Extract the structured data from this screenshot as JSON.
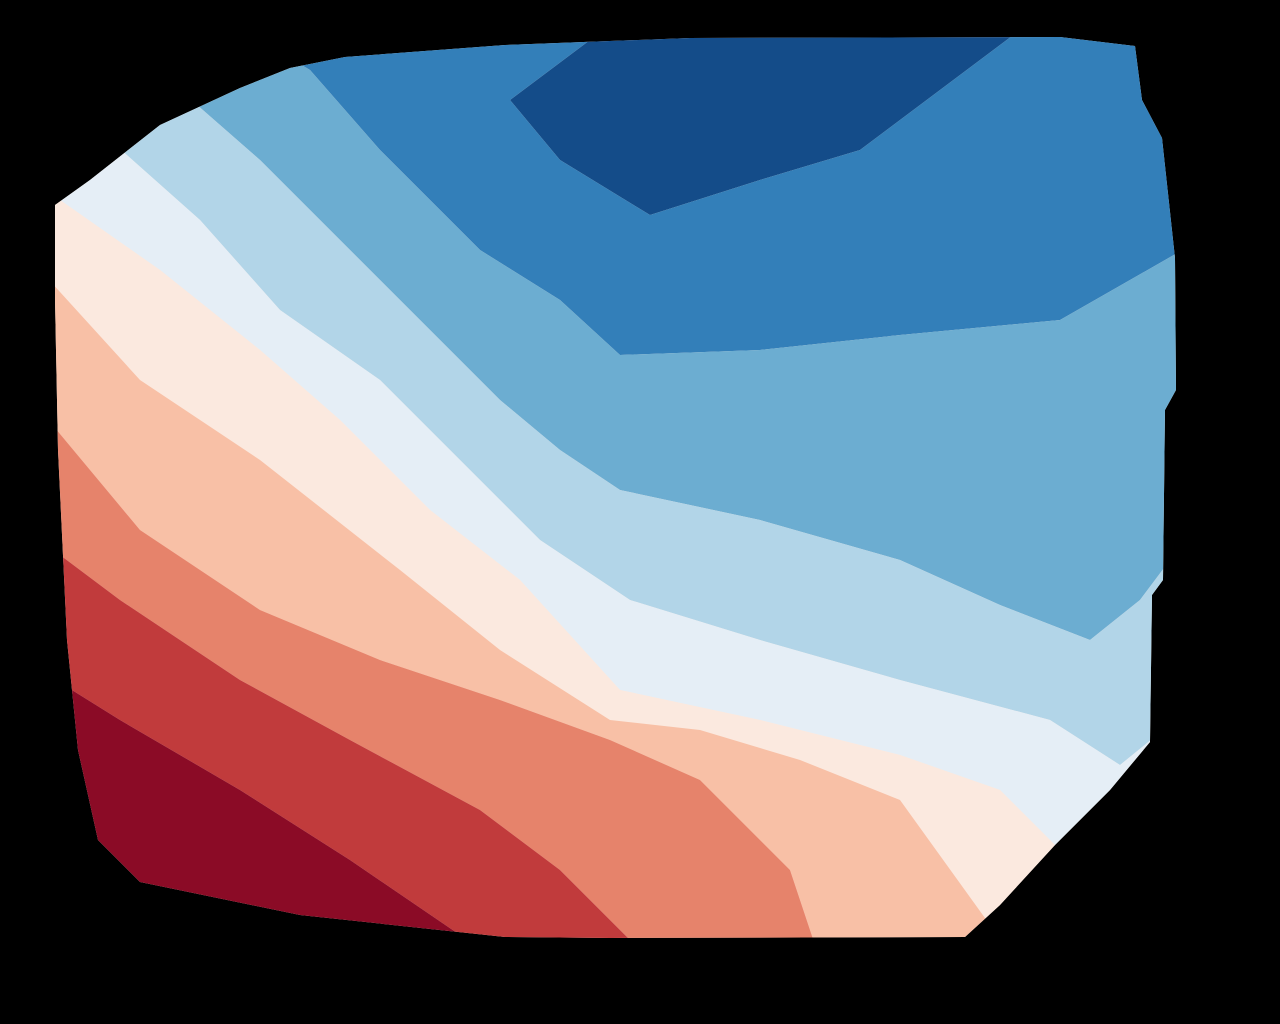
{
  "chart_data": {
    "type": "filled-contour",
    "title": "",
    "xlabel": "",
    "ylabel": "",
    "colormap": "RdBu",
    "background": "#000000",
    "axes_visible": false,
    "grid": false,
    "legend": "none",
    "levels": [
      {
        "index": 0,
        "color": "#67001f"
      },
      {
        "index": 1,
        "color": "#8b0b26"
      },
      {
        "index": 2,
        "color": "#c13b3c"
      },
      {
        "index": 3,
        "color": "#e6836b"
      },
      {
        "index": 4,
        "color": "#f8c0a6"
      },
      {
        "index": 5,
        "color": "#fbe9df"
      },
      {
        "index": 6,
        "color": "#e5eef6"
      },
      {
        "index": 7,
        "color": "#b2d5e8"
      },
      {
        "index": 8,
        "color": "#6cadd1"
      },
      {
        "index": 9,
        "color": "#337fb9"
      },
      {
        "index": 10,
        "color": "#144c89"
      }
    ]
  }
}
